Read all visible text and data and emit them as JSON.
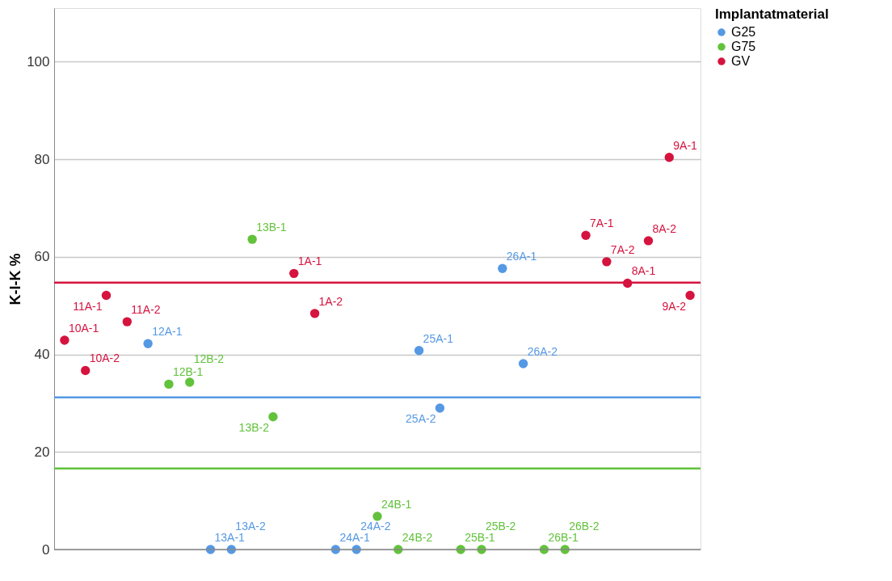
{
  "chart_data": {
    "type": "scatter",
    "ylabel": "K-I-K %",
    "legend_title": "Implantatmaterial",
    "categories": [
      null,
      null,
      null,
      null,
      null,
      null,
      null,
      null,
      null,
      null,
      null,
      null,
      null,
      null,
      null,
      null,
      null,
      null,
      null,
      null,
      null,
      null,
      null,
      null,
      null,
      null,
      null,
      null,
      null,
      null,
      null
    ],
    "series": [
      {
        "name": "G25",
        "color": "#5598e4",
        "values": [
          null,
          null,
          null,
          null,
          42.2,
          null,
          null,
          0,
          0,
          null,
          null,
          null,
          null,
          0,
          0,
          null,
          null,
          40.8,
          29.0,
          null,
          null,
          57.6,
          38.1,
          null,
          null,
          null,
          null,
          null,
          null,
          null,
          null
        ],
        "value_labels": [
          null,
          null,
          null,
          null,
          "12A-1",
          null,
          null,
          "13A-1",
          "13A-2",
          null,
          null,
          null,
          null,
          "24A-1",
          "24A-2",
          null,
          null,
          "25A-1",
          "25A-2",
          null,
          null,
          "26A-1",
          "26A-2",
          null,
          null,
          null,
          null,
          null,
          null,
          null,
          null
        ]
      },
      {
        "name": "G75",
        "color": "#62c23b",
        "values": [
          null,
          null,
          null,
          null,
          null,
          33.9,
          34.3,
          null,
          null,
          63.6,
          27.2,
          null,
          null,
          null,
          null,
          6.8,
          0,
          null,
          null,
          0,
          0,
          null,
          null,
          0,
          0,
          null,
          null,
          null,
          null,
          null,
          null
        ],
        "value_labels": [
          null,
          null,
          null,
          null,
          null,
          "12B-1",
          "12B-2",
          null,
          null,
          "13B-1",
          "13B-2",
          null,
          null,
          null,
          null,
          "24B-1",
          "24B-2",
          null,
          null,
          "25B-1",
          "25B-2",
          null,
          null,
          "26B-1",
          "26B-2",
          null,
          null,
          null,
          null,
          null,
          null
        ]
      },
      {
        "name": "GV",
        "color": "#d5133e",
        "values": [
          42.9,
          36.7,
          52.1,
          46.7,
          null,
          null,
          null,
          null,
          null,
          null,
          null,
          56.6,
          48.4,
          null,
          null,
          null,
          null,
          null,
          null,
          null,
          null,
          null,
          null,
          null,
          null,
          64.4,
          59.0,
          54.6,
          63.3,
          80.4,
          52.1
        ],
        "value_labels": [
          "10A-1",
          "10A-2",
          "11A-1",
          "11A-2",
          null,
          null,
          null,
          null,
          null,
          null,
          null,
          "1A-1",
          "1A-2",
          null,
          null,
          null,
          null,
          null,
          null,
          null,
          null,
          null,
          null,
          null,
          null,
          "7A-1",
          "7A-2",
          "8A-1",
          "8A-2",
          "9A-1",
          "9A-2"
        ]
      }
    ],
    "ref_lines": [
      {
        "axis": "y",
        "value": 54.7,
        "color": "#d5133e"
      },
      {
        "axis": "y",
        "value": 31.2,
        "color": "#5598e4"
      },
      {
        "axis": "y",
        "value": 16.6,
        "color": "#62c23b"
      }
    ],
    "ylim": [
      0,
      111
    ],
    "yticks": [
      0,
      20,
      40,
      60,
      80,
      100
    ],
    "grid": "y",
    "legend": "top right",
    "tick_labels": "y",
    "marker": "circle"
  }
}
